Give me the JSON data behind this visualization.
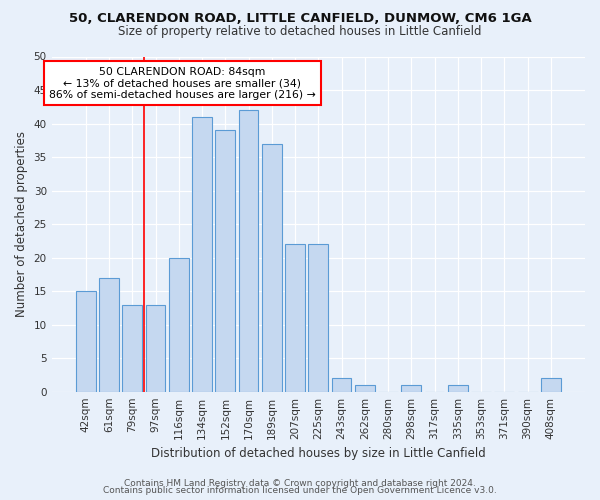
{
  "title1": "50, CLARENDON ROAD, LITTLE CANFIELD, DUNMOW, CM6 1GA",
  "title2": "Size of property relative to detached houses in Little Canfield",
  "xlabel": "Distribution of detached houses by size in Little Canfield",
  "ylabel": "Number of detached properties",
  "categories": [
    "42sqm",
    "61sqm",
    "79sqm",
    "97sqm",
    "116sqm",
    "134sqm",
    "152sqm",
    "170sqm",
    "189sqm",
    "207sqm",
    "225sqm",
    "243sqm",
    "262sqm",
    "280sqm",
    "298sqm",
    "317sqm",
    "335sqm",
    "353sqm",
    "371sqm",
    "390sqm",
    "408sqm"
  ],
  "values": [
    15,
    17,
    13,
    13,
    20,
    41,
    39,
    42,
    37,
    22,
    22,
    2,
    1,
    0,
    1,
    0,
    1,
    0,
    0,
    0,
    2
  ],
  "bar_color": "#c5d8f0",
  "bar_edge_color": "#5b9bd5",
  "vline_x": 2.5,
  "annotation_text_line1": "50 CLARENDON ROAD: 84sqm",
  "annotation_text_line2": "← 13% of detached houses are smaller (34)",
  "annotation_text_line3": "86% of semi-detached houses are larger (216) →",
  "annotation_box_color": "white",
  "annotation_box_edge_color": "red",
  "vline_color": "red",
  "ylim": [
    0,
    50
  ],
  "yticks": [
    0,
    5,
    10,
    15,
    20,
    25,
    30,
    35,
    40,
    45,
    50
  ],
  "footer1": "Contains HM Land Registry data © Crown copyright and database right 2024.",
  "footer2": "Contains public sector information licensed under the Open Government Licence v3.0.",
  "bg_color": "#e8f0fa",
  "plot_bg_color": "#e8f0fa",
  "title1_fontsize": 9.5,
  "title2_fontsize": 8.5,
  "ylabel_fontsize": 8.5,
  "xlabel_fontsize": 8.5,
  "tick_fontsize": 7.5,
  "footer_fontsize": 6.5,
  "annotation_fontsize": 7.8
}
